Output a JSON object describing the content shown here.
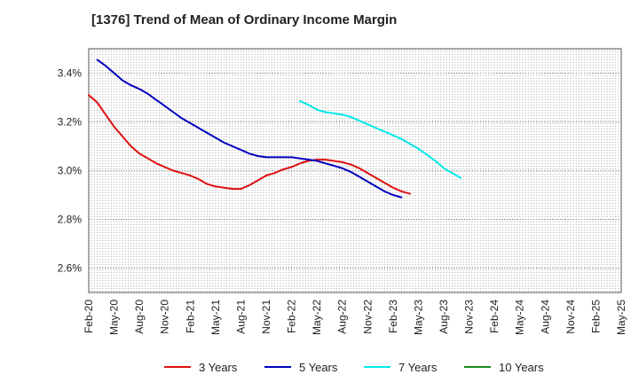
{
  "chart_data": {
    "type": "line",
    "title": "[1376]  Trend of Mean of Ordinary Income Margin",
    "xlabel": "",
    "ylabel": "",
    "y_unit": "%",
    "ylim": [
      2.5,
      3.5
    ],
    "yticks": [
      2.6,
      2.8,
      3.0,
      3.2,
      3.4
    ],
    "ytick_labels": [
      "2.6%",
      "2.8%",
      "3.0%",
      "3.2%",
      "3.4%"
    ],
    "x_tick_labels": [
      "Feb-20",
      "May-20",
      "Aug-20",
      "Nov-20",
      "Feb-21",
      "May-21",
      "Aug-21",
      "Nov-21",
      "Feb-22",
      "May-22",
      "Aug-22",
      "Nov-22",
      "Feb-23",
      "May-23",
      "Aug-23",
      "Nov-23",
      "Feb-24",
      "May-24",
      "Aug-24",
      "Nov-24",
      "Feb-25",
      "May-25"
    ],
    "grid": true,
    "legend_position": "bottom",
    "series": [
      {
        "name": "3 Years",
        "color": "#e01010",
        "start_index": 0,
        "values": [
          3.31,
          3.28,
          3.23,
          3.18,
          3.14,
          3.1,
          3.07,
          3.05,
          3.03,
          3.015,
          3.0,
          2.99,
          2.98,
          2.965,
          2.945,
          2.935,
          2.93,
          2.925,
          2.925,
          2.94,
          2.96,
          2.98,
          2.99,
          3.005,
          3.015,
          3.03,
          3.04,
          3.045,
          3.045,
          3.04,
          3.035,
          3.025,
          3.01,
          2.99,
          2.97,
          2.95,
          2.93,
          2.915,
          2.905
        ]
      },
      {
        "name": "5 Years",
        "color": "#0000c0",
        "start_index": 1,
        "values": [
          3.455,
          3.43,
          3.4,
          3.37,
          3.35,
          3.335,
          3.315,
          3.29,
          3.265,
          3.24,
          3.215,
          3.195,
          3.175,
          3.155,
          3.135,
          3.115,
          3.1,
          3.085,
          3.07,
          3.06,
          3.055,
          3.055,
          3.055,
          3.055,
          3.05,
          3.045,
          3.04,
          3.03,
          3.02,
          3.01,
          2.995,
          2.975,
          2.955,
          2.935,
          2.915,
          2.9,
          2.89
        ]
      },
      {
        "name": "7 Years",
        "color": "#00e8e8",
        "start_index": 25,
        "values": [
          3.285,
          3.27,
          3.25,
          3.24,
          3.235,
          3.23,
          3.22,
          3.205,
          3.19,
          3.175,
          3.16,
          3.145,
          3.13,
          3.11,
          3.09,
          3.065,
          3.04,
          3.01,
          2.99,
          2.97
        ]
      },
      {
        "name": "10 Years",
        "color": "#1a8a1a",
        "start_index": 0,
        "values": []
      }
    ]
  }
}
